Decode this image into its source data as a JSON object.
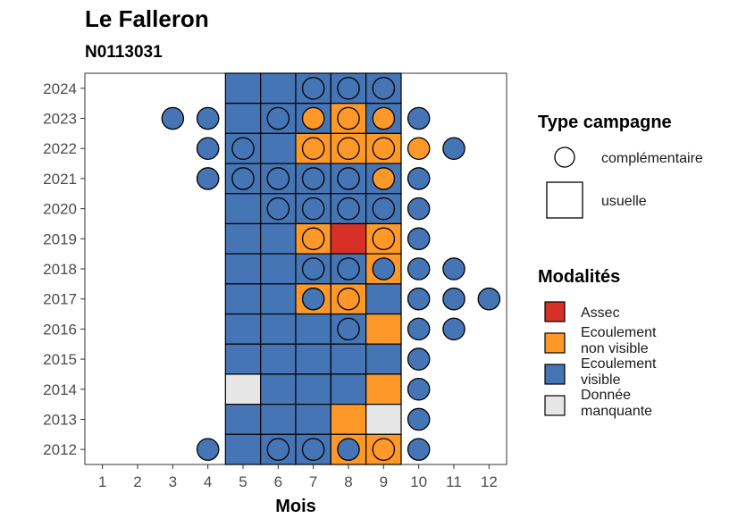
{
  "chart_data": {
    "type": "heatmap",
    "title": "Le Falleron",
    "subtitle": "N0113031",
    "xlabel": "Mois",
    "ylabel": "",
    "x_ticks": [
      1,
      2,
      3,
      4,
      5,
      6,
      7,
      8,
      9,
      10,
      11,
      12
    ],
    "y_ticks": [
      2012,
      2013,
      2014,
      2015,
      2016,
      2017,
      2018,
      2019,
      2020,
      2021,
      2022,
      2023,
      2024
    ],
    "xlim": [
      0.5,
      12.5
    ],
    "ylim": [
      2011.5,
      2024.5
    ],
    "colors": {
      "Assec": "#d73027",
      "Ecoulement non visible": "#fe9929",
      "Ecoulement visible": "#4575b4",
      "Donnée manquante": "#e6e6e6"
    },
    "legend_type": {
      "title": "Type campagne",
      "items": [
        {
          "key": "complementaire",
          "label": "complémentaire",
          "shape": "circle"
        },
        {
          "key": "usuelle",
          "label": "usuelle",
          "shape": "square"
        }
      ]
    },
    "legend_modalites": {
      "title": "Modalités",
      "items": [
        {
          "key": "Assec",
          "lines": [
            "Assec"
          ]
        },
        {
          "key": "Ecoulement non visible",
          "lines": [
            "Ecoulement",
            "non visible"
          ]
        },
        {
          "key": "Ecoulement visible",
          "lines": [
            "Ecoulement",
            "visible"
          ]
        },
        {
          "key": "Donnée manquante",
          "lines": [
            "Donnée",
            "manquante"
          ]
        }
      ]
    },
    "usuelle": [
      {
        "year": 2024,
        "values": {
          "5": "Ecoulement visible",
          "6": "Ecoulement visible",
          "7": "Ecoulement visible",
          "8": "Ecoulement visible",
          "9": "Ecoulement visible"
        }
      },
      {
        "year": 2023,
        "values": {
          "5": "Ecoulement visible",
          "6": "Ecoulement visible",
          "7": "Ecoulement visible",
          "8": "Ecoulement non visible",
          "9": "Ecoulement visible"
        }
      },
      {
        "year": 2022,
        "values": {
          "5": "Ecoulement visible",
          "6": "Ecoulement visible",
          "7": "Ecoulement non visible",
          "8": "Ecoulement non visible",
          "9": "Ecoulement non visible"
        }
      },
      {
        "year": 2021,
        "values": {
          "5": "Ecoulement visible",
          "6": "Ecoulement visible",
          "7": "Ecoulement visible",
          "8": "Ecoulement visible",
          "9": "Ecoulement visible"
        }
      },
      {
        "year": 2020,
        "values": {
          "5": "Ecoulement visible",
          "6": "Ecoulement visible",
          "7": "Ecoulement visible",
          "8": "Ecoulement visible",
          "9": "Ecoulement visible"
        }
      },
      {
        "year": 2019,
        "values": {
          "5": "Ecoulement visible",
          "6": "Ecoulement visible",
          "7": "Ecoulement non visible",
          "8": "Assec",
          "9": "Ecoulement non visible"
        }
      },
      {
        "year": 2018,
        "values": {
          "5": "Ecoulement visible",
          "6": "Ecoulement visible",
          "7": "Ecoulement visible",
          "8": "Ecoulement visible",
          "9": "Ecoulement non visible"
        }
      },
      {
        "year": 2017,
        "values": {
          "5": "Ecoulement visible",
          "6": "Ecoulement visible",
          "7": "Ecoulement non visible",
          "8": "Ecoulement non visible",
          "9": "Ecoulement visible"
        }
      },
      {
        "year": 2016,
        "values": {
          "5": "Ecoulement visible",
          "6": "Ecoulement visible",
          "7": "Ecoulement visible",
          "8": "Ecoulement visible",
          "9": "Ecoulement non visible"
        }
      },
      {
        "year": 2015,
        "values": {
          "5": "Ecoulement visible",
          "6": "Ecoulement visible",
          "7": "Ecoulement visible",
          "8": "Ecoulement visible",
          "9": "Ecoulement visible"
        }
      },
      {
        "year": 2014,
        "values": {
          "5": "Donnée manquante",
          "6": "Ecoulement visible",
          "7": "Ecoulement visible",
          "8": "Ecoulement visible",
          "9": "Ecoulement non visible"
        }
      },
      {
        "year": 2013,
        "values": {
          "5": "Ecoulement visible",
          "6": "Ecoulement visible",
          "7": "Ecoulement visible",
          "8": "Ecoulement non visible",
          "9": "Donnée manquante"
        }
      },
      {
        "year": 2012,
        "values": {
          "5": "Ecoulement visible",
          "6": "Ecoulement visible",
          "7": "Ecoulement visible",
          "8": "Ecoulement non visible",
          "9": "Ecoulement non visible"
        }
      }
    ],
    "complementaire": [
      {
        "year": 2024,
        "values": {
          "7": "Ecoulement visible",
          "8": "Ecoulement visible",
          "9": "Ecoulement visible"
        }
      },
      {
        "year": 2023,
        "values": {
          "3": "Ecoulement visible",
          "4": "Ecoulement visible",
          "6": "Ecoulement visible",
          "7": "Ecoulement non visible",
          "8": "Ecoulement non visible",
          "9": "Ecoulement non visible",
          "10": "Ecoulement visible"
        }
      },
      {
        "year": 2022,
        "values": {
          "4": "Ecoulement visible",
          "5": "Ecoulement visible",
          "7": "Ecoulement non visible",
          "8": "Ecoulement non visible",
          "9": "Ecoulement non visible",
          "10": "Ecoulement non visible",
          "11": "Ecoulement visible"
        }
      },
      {
        "year": 2021,
        "values": {
          "4": "Ecoulement visible",
          "5": "Ecoulement visible",
          "6": "Ecoulement visible",
          "7": "Ecoulement visible",
          "8": "Ecoulement visible",
          "9": "Ecoulement non visible",
          "10": "Ecoulement visible"
        }
      },
      {
        "year": 2020,
        "values": {
          "6": "Ecoulement visible",
          "7": "Ecoulement visible",
          "8": "Ecoulement visible",
          "9": "Ecoulement visible",
          "10": "Ecoulement visible"
        }
      },
      {
        "year": 2019,
        "values": {
          "7": "Ecoulement non visible",
          "9": "Ecoulement non visible",
          "10": "Ecoulement visible"
        }
      },
      {
        "year": 2018,
        "values": {
          "7": "Ecoulement visible",
          "8": "Ecoulement visible",
          "9": "Ecoulement visible",
          "10": "Ecoulement visible",
          "11": "Ecoulement visible"
        }
      },
      {
        "year": 2017,
        "values": {
          "7": "Ecoulement visible",
          "8": "Ecoulement non visible",
          "10": "Ecoulement visible",
          "11": "Ecoulement visible",
          "12": "Ecoulement visible"
        }
      },
      {
        "year": 2016,
        "values": {
          "8": "Ecoulement visible",
          "10": "Ecoulement visible",
          "11": "Ecoulement visible"
        }
      },
      {
        "year": 2015,
        "values": {
          "10": "Ecoulement visible"
        }
      },
      {
        "year": 2014,
        "values": {
          "10": "Ecoulement visible"
        }
      },
      {
        "year": 2013,
        "values": {
          "10": "Ecoulement visible"
        }
      },
      {
        "year": 2012,
        "values": {
          "4": "Ecoulement visible",
          "6": "Ecoulement visible",
          "7": "Ecoulement visible",
          "8": "Ecoulement visible",
          "9": "Ecoulement non visible",
          "10": "Ecoulement visible"
        }
      }
    ]
  }
}
